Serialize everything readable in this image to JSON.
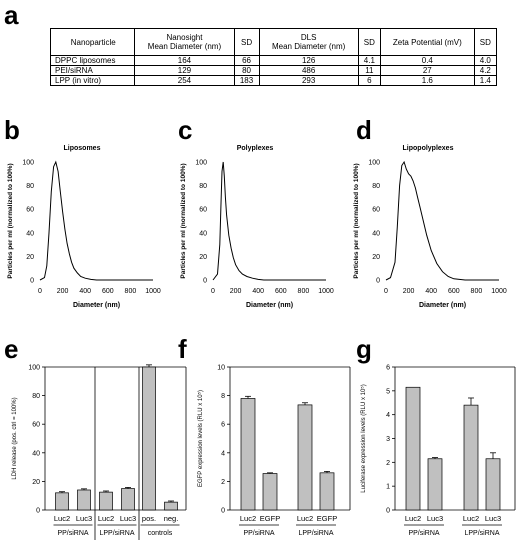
{
  "panels": {
    "a": "a",
    "b": "b",
    "c": "c",
    "d": "d",
    "e": "e",
    "f": "f",
    "g": "g"
  },
  "table": {
    "headers": [
      "Nanoparticle",
      "Nanosight\nMean Diameter (nm)",
      "SD",
      "DLS\nMean Diameter (nm)",
      "SD",
      "Zeta Potential (mV)",
      "SD"
    ],
    "rows": [
      [
        "DPPC liposomes",
        "164",
        "66",
        "126",
        "4.1",
        "0.4",
        "4.0"
      ],
      [
        "PEI/siRNA",
        "129",
        "80",
        "486",
        "11",
        "27",
        "4.2"
      ],
      [
        "LPP (in vitro)",
        "254",
        "183",
        "293",
        "6",
        "1.6",
        "1.4"
      ]
    ]
  },
  "chart_data": [
    {
      "id": "b",
      "type": "line",
      "title": "Liposomes",
      "xlabel": "Diameter (nm)",
      "ylabel": "Particles per ml (normalized to 100%)",
      "xlim": [
        0,
        1000
      ],
      "ylim": [
        0,
        100
      ],
      "xticks": [
        0,
        200,
        400,
        600,
        800,
        1000
      ],
      "yticks": [
        0,
        20,
        40,
        60,
        80,
        100
      ],
      "x": [
        0,
        40,
        60,
        80,
        100,
        120,
        140,
        160,
        180,
        200,
        220,
        240,
        260,
        280,
        300,
        330,
        360,
        400,
        450,
        500,
        600,
        800,
        1000
      ],
      "y": [
        0,
        2,
        12,
        40,
        75,
        96,
        100,
        92,
        75,
        58,
        43,
        31,
        22,
        15,
        10,
        6,
        3,
        1.5,
        0.5,
        0,
        0,
        0,
        0
      ]
    },
    {
      "id": "c",
      "type": "line",
      "title": "Polyplexes",
      "xlabel": "Diameter (nm)",
      "ylabel": "Particles per ml (normalized to 100%)",
      "xlim": [
        0,
        1000
      ],
      "ylim": [
        0,
        100
      ],
      "xticks": [
        0,
        200,
        400,
        600,
        800,
        1000
      ],
      "yticks": [
        0,
        20,
        40,
        60,
        80,
        100
      ],
      "x": [
        0,
        40,
        60,
        70,
        80,
        90,
        100,
        110,
        120,
        140,
        160,
        180,
        200,
        230,
        260,
        300,
        350,
        400,
        450,
        500,
        600,
        800,
        1000
      ],
      "y": [
        0,
        5,
        30,
        62,
        92,
        100,
        88,
        70,
        55,
        38,
        27,
        19,
        13,
        8,
        5,
        3,
        1.5,
        0.5,
        0,
        0,
        0,
        0,
        0
      ]
    },
    {
      "id": "d",
      "type": "line",
      "title": "Lipopolyplexes",
      "xlabel": "Diameter (nm)",
      "ylabel": "Particles per ml (normalized to 100%)",
      "xlim": [
        0,
        1000
      ],
      "ylim": [
        0,
        100
      ],
      "xticks": [
        0,
        200,
        400,
        600,
        800,
        1000
      ],
      "yticks": [
        0,
        20,
        40,
        60,
        80,
        100
      ],
      "x": [
        0,
        40,
        80,
        100,
        120,
        140,
        160,
        180,
        200,
        220,
        240,
        260,
        280,
        300,
        330,
        360,
        400,
        450,
        500,
        550,
        600,
        700,
        800,
        1000
      ],
      "y": [
        0,
        2,
        15,
        45,
        80,
        97,
        100,
        94,
        90,
        88,
        84,
        78,
        70,
        62,
        50,
        38,
        25,
        14,
        7,
        3,
        1,
        0,
        0,
        0
      ]
    },
    {
      "id": "e",
      "type": "bar",
      "ylabel": "LDH release (pos. ctrl = 100%)",
      "ylim": [
        0,
        100
      ],
      "yticks": [
        0,
        20,
        40,
        60,
        80,
        100
      ],
      "categories": [
        "Luc2",
        "Luc3",
        "Luc2",
        "Luc3",
        "pos.",
        "neg."
      ],
      "values": [
        12,
        14,
        12.5,
        15,
        100,
        5.5
      ],
      "errors": [
        0.8,
        0.8,
        0.8,
        0.8,
        1.5,
        0.8
      ],
      "groups": [
        {
          "label": "PP/siRNA",
          "span": [
            0,
            1
          ]
        },
        {
          "label": "LPP/siRNA",
          "span": [
            2,
            3
          ]
        },
        {
          "label": "controls",
          "span": [
            4,
            5
          ]
        }
      ]
    },
    {
      "id": "f",
      "type": "bar",
      "ylabel": "EGFP expression levels (RLU x 10⁵)",
      "ylim": [
        0,
        10
      ],
      "yticks": [
        0,
        2,
        4,
        6,
        8,
        10
      ],
      "categories": [
        "Luc2",
        "EGFP",
        "Luc2",
        "EGFP"
      ],
      "values": [
        7.8,
        2.55,
        7.35,
        2.6
      ],
      "errors": [
        0.15,
        0.05,
        0.15,
        0.1
      ],
      "groups": [
        {
          "label": "PP/siRNA",
          "span": [
            0,
            1
          ]
        },
        {
          "label": "LPP/siRNA",
          "span": [
            2,
            3
          ]
        }
      ]
    },
    {
      "id": "g",
      "type": "bar",
      "ylabel": "Luciferase expression levels (RLU x 10⁵)",
      "ylim": [
        0,
        6
      ],
      "yticks": [
        0,
        1,
        2,
        3,
        4,
        5,
        6
      ],
      "categories": [
        "Luc2",
        "Luc3",
        "Luc2",
        "Luc3"
      ],
      "values": [
        5.15,
        2.15,
        4.4,
        2.15
      ],
      "errors": [
        0.0,
        0.05,
        0.3,
        0.25
      ],
      "groups": [
        {
          "label": "PP/siRNA",
          "span": [
            0,
            1
          ]
        },
        {
          "label": "LPP/siRNA",
          "span": [
            2,
            3
          ]
        }
      ]
    }
  ]
}
